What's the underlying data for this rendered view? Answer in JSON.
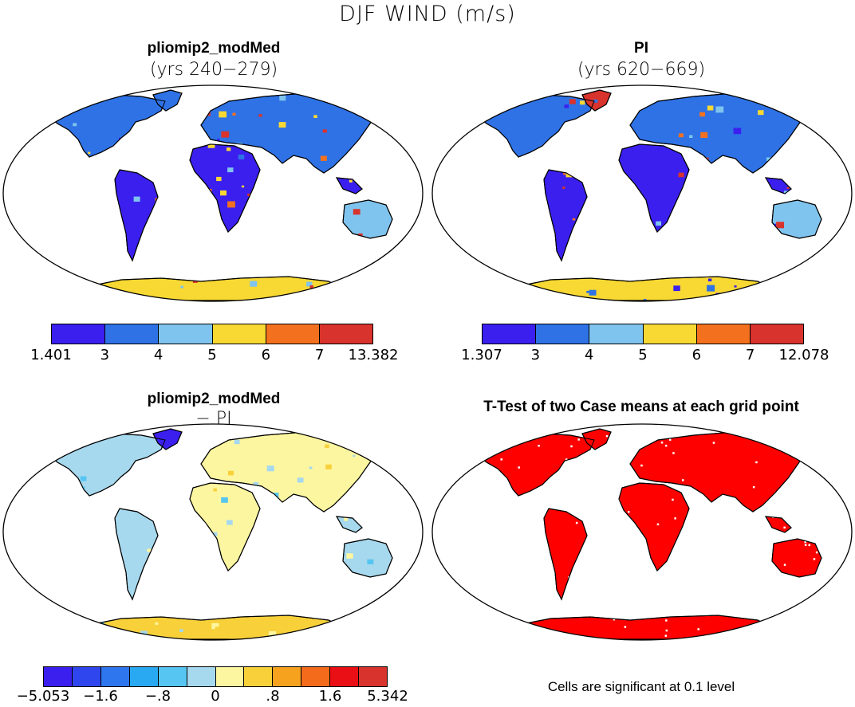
{
  "figure": {
    "title": "DJF WIND (m/s)",
    "panels": [
      {
        "id": "top-left",
        "title": "pliomip2_modMed",
        "subtitle": "(yrs 240−279)",
        "colorbar": {
          "labels": [
            "1.401",
            "3",
            "4",
            "5",
            "6",
            "7",
            "13.382"
          ],
          "colors": [
            "#3b1fef",
            "#2e72e6",
            "#7fc4ee",
            "#f8d832",
            "#f3711e",
            "#d8332c"
          ]
        }
      },
      {
        "id": "top-right",
        "title": "PI",
        "subtitle": "(yrs 620−669)",
        "colorbar": {
          "labels": [
            "1.307",
            "3",
            "4",
            "5",
            "6",
            "7",
            "12.078"
          ],
          "colors": [
            "#3b1fef",
            "#2e72e6",
            "#7fc4ee",
            "#f8d832",
            "#f3711e",
            "#d8332c"
          ]
        }
      },
      {
        "id": "bottom-left",
        "title": "pliomip2_modMed",
        "subtitle": "− PI",
        "colorbar": {
          "labels": [
            "−5.053",
            "−1.6",
            "−.8",
            "0",
            ".8",
            "1.6",
            "5.342"
          ],
          "label_positions": [
            0,
            2,
            4,
            6,
            8,
            10,
            12
          ],
          "colors": [
            "#3b1fef",
            "#2f46ee",
            "#2e76ee",
            "#28a9f2",
            "#56c5f1",
            "#a6d8ee",
            "#fdf6a0",
            "#f8d13a",
            "#f6a21f",
            "#f46b1b",
            "#ea0f14",
            "#d8332c"
          ]
        }
      },
      {
        "id": "bottom-right",
        "title": "T-Test of two Case means at each grid point",
        "footer": "Cells are significant at 0.1 level",
        "fill_color": "#ff0000"
      }
    ]
  }
}
